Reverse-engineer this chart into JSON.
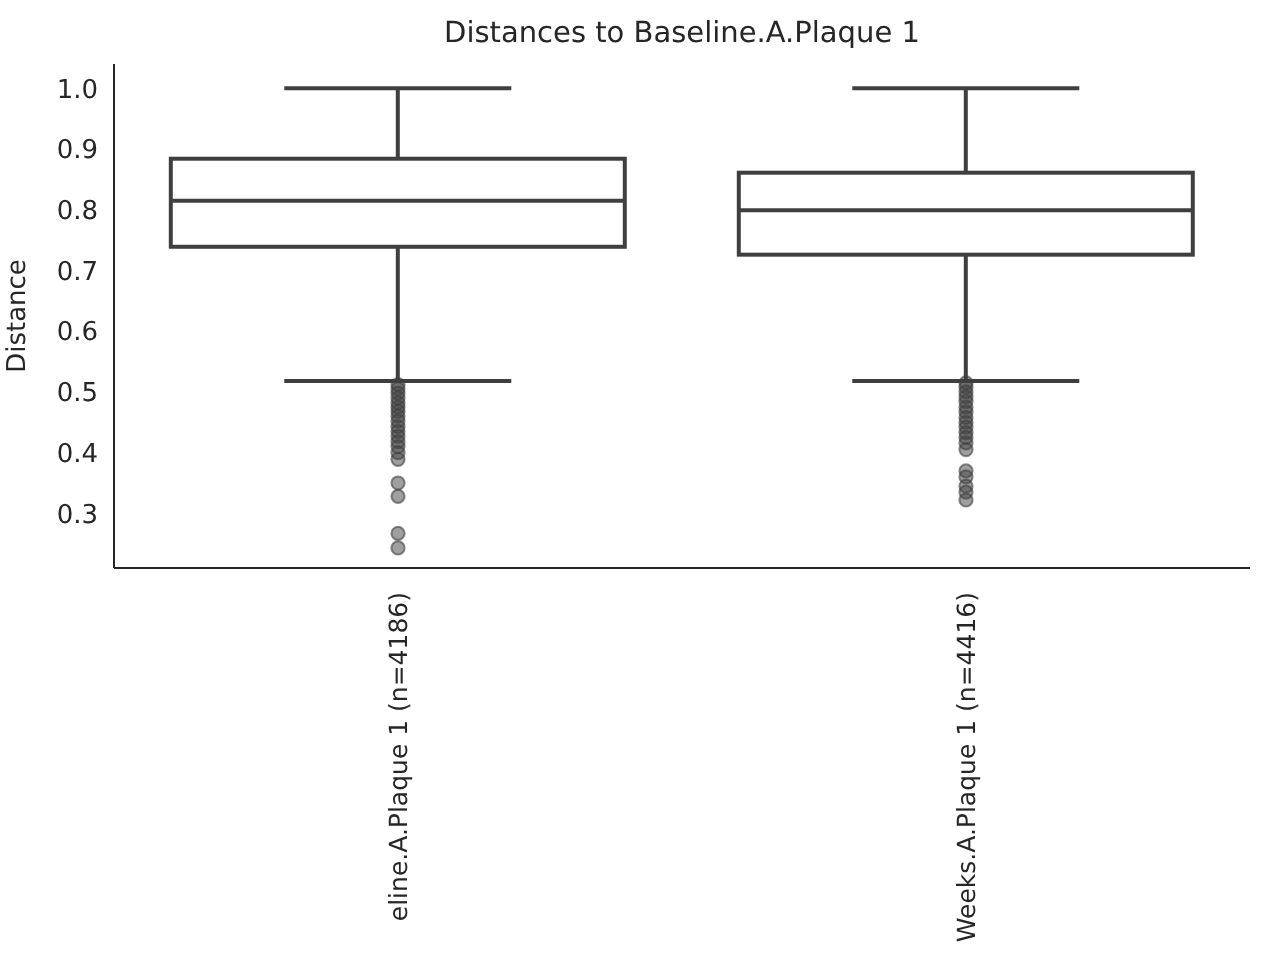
{
  "chart_data": {
    "type": "box",
    "title": "Distances to Baseline.A.Plaque 1",
    "ylabel": "Distance",
    "categories": [
      "eline.A.Plaque 1 (n=4186)",
      "Weeks.A.Plaque 1 (n=4416)"
    ],
    "color": "#3f3f3f",
    "boxes": [
      {
        "low": 0.518,
        "q1": 0.739,
        "median": 0.815,
        "q3": 0.884,
        "high": 1.0,
        "outliers": [
          0.512,
          0.505,
          0.498,
          0.49,
          0.482,
          0.475,
          0.468,
          0.46,
          0.452,
          0.443,
          0.435,
          0.427,
          0.418,
          0.41,
          0.4,
          0.389,
          0.35,
          0.328,
          0.267,
          0.243
        ]
      },
      {
        "low": 0.518,
        "q1": 0.726,
        "median": 0.799,
        "q3": 0.861,
        "high": 1.0,
        "outliers": [
          0.515,
          0.508,
          0.5,
          0.492,
          0.484,
          0.475,
          0.467,
          0.458,
          0.45,
          0.442,
          0.433,
          0.425,
          0.416,
          0.405,
          0.37,
          0.36,
          0.345,
          0.335,
          0.322
        ]
      }
    ],
    "ylim": [
      0.21,
      1.04
    ],
    "yticks": [
      0.3,
      0.4,
      0.5,
      0.6,
      0.7,
      0.8,
      0.9,
      {
        "value": 1.0,
        "label": "1.0"
      }
    ]
  }
}
